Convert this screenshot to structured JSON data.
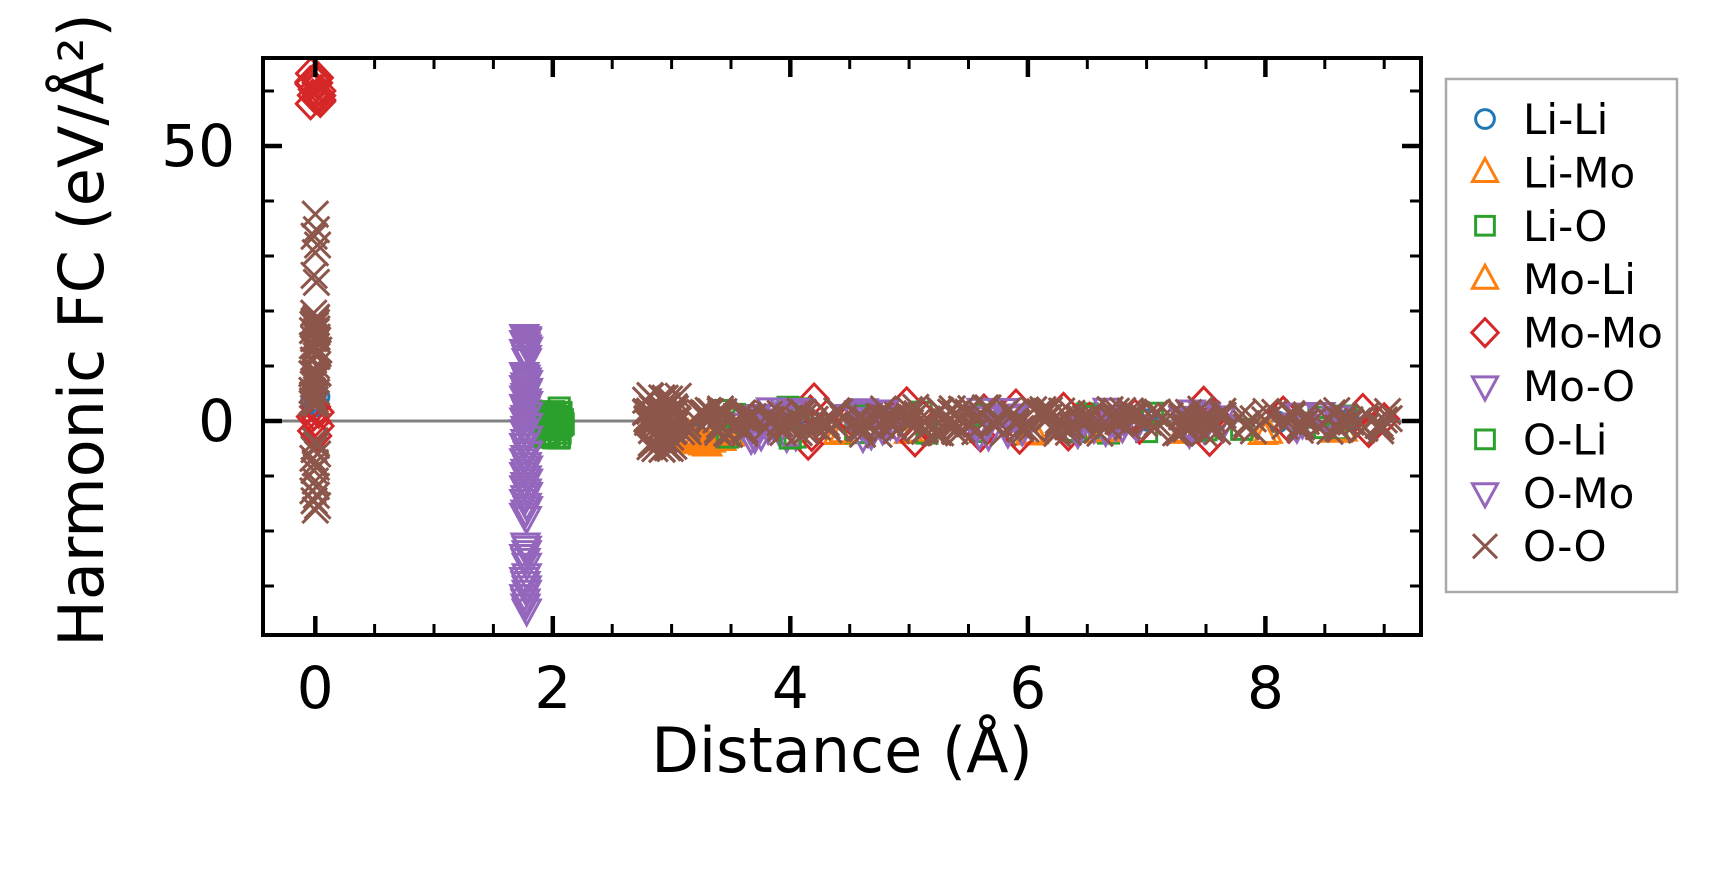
{
  "chart_data": {
    "type": "scatter",
    "title": "",
    "xlabel": "Distance (Å)",
    "ylabel": "Harmonic FC (eV/Å²)",
    "xlim": [
      -0.44,
      9.31
    ],
    "ylim": [
      -38.9,
      66.0
    ],
    "x_ticks": {
      "major": [
        0,
        2,
        4,
        6,
        8
      ],
      "minor_step": 0.5
    },
    "y_ticks": {
      "major": [
        0,
        50
      ],
      "minor_step": 10
    },
    "grid": false,
    "zero_line": {
      "y": 0,
      "color": "#808080"
    },
    "legend": {
      "position": "outside-right",
      "border_color": "#aaaaaa",
      "entries": [
        "Li-Li",
        "Li-Mo",
        "Li-O",
        "Mo-Li",
        "Mo-Mo",
        "Mo-O",
        "O-Li",
        "O-Mo",
        "O-O"
      ]
    },
    "series": [
      {
        "name": "Li-Li",
        "marker": "circle",
        "color": "#1f77b4",
        "points": [
          [
            0,
            5.2
          ],
          [
            0.03,
            4.4
          ],
          [
            -0.03,
            3.6
          ],
          [
            0.02,
            2.8
          ],
          [
            -0.02,
            4.8
          ],
          [
            0,
            3.1
          ],
          [
            3.0,
            0.5
          ],
          [
            3.3,
            -0.4
          ],
          [
            4.2,
            -0.3
          ],
          [
            4.8,
            0.4
          ],
          [
            5.7,
            0.6
          ],
          [
            6.4,
            -0.5
          ],
          [
            7.0,
            0.2
          ],
          [
            7.5,
            0.3
          ],
          [
            8.1,
            -0.2
          ],
          [
            8.7,
            0.1
          ]
        ],
        "clusters": []
      },
      {
        "name": "Li-Mo",
        "marker": "triangle-up",
        "color": "#ff7f0e",
        "points": [
          [
            3.1,
            -2.9
          ],
          [
            3.16,
            -3.5
          ],
          [
            3.23,
            -4.0
          ],
          [
            3.3,
            -4.4
          ],
          [
            3.38,
            -3.2
          ],
          [
            3.46,
            -2.8
          ],
          [
            3.14,
            -2.5
          ],
          [
            3.33,
            -3.7
          ],
          [
            4.4,
            -2.3
          ],
          [
            5.0,
            -2.1
          ],
          [
            6.02,
            -2.4
          ],
          [
            6.6,
            -2.0
          ],
          [
            7.3,
            -2.1
          ],
          [
            7.98,
            -2.3
          ],
          [
            8.6,
            -1.9
          ]
        ],
        "clusters": []
      },
      {
        "name": "Li-O",
        "marker": "square",
        "color": "#2ca02c",
        "points": [
          [
            3.44,
            1.9
          ],
          [
            3.5,
            -2.7
          ],
          [
            3.56,
            0.6
          ],
          [
            3.98,
            2.5
          ],
          [
            4.04,
            -2.9
          ],
          [
            4.1,
            0.4
          ],
          [
            4.55,
            -2.1
          ],
          [
            5.1,
            1.6
          ],
          [
            5.6,
            -1.9
          ],
          [
            6.35,
            -1.7
          ],
          [
            6.5,
            1.3
          ],
          [
            6.68,
            -2.2
          ],
          [
            7.0,
            -1.9
          ],
          [
            7.45,
            0.9
          ],
          [
            7.8,
            -1.5
          ],
          [
            8.45,
            0.7
          ],
          [
            8.6,
            -1.4
          ]
        ],
        "clusters": [
          [
            1.93,
            2.08,
            -3.2,
            2.2,
            22
          ]
        ]
      },
      {
        "name": "Mo-Li",
        "marker": "triangle-up",
        "color": "#ff7f0e",
        "points": [
          [
            3.12,
            -3.1
          ],
          [
            3.2,
            -3.8
          ],
          [
            3.27,
            -4.2
          ],
          [
            3.35,
            -2.9
          ],
          [
            3.42,
            -3.4
          ],
          [
            3.5,
            -2.6
          ],
          [
            4.45,
            -2.0
          ],
          [
            5.05,
            -1.9
          ],
          [
            6.05,
            -2.2
          ],
          [
            6.65,
            -1.8
          ],
          [
            7.35,
            -1.9
          ],
          [
            8.02,
            -2.1
          ],
          [
            8.65,
            -1.7
          ]
        ],
        "clusters": []
      },
      {
        "name": "Mo-Mo",
        "marker": "diamond",
        "color": "#d62728",
        "points": [
          [
            0,
            2.6
          ],
          [
            0.03,
            1.6
          ],
          [
            -0.03,
            0.8
          ],
          [
            0,
            0.0
          ],
          [
            0.03,
            -0.9
          ],
          [
            -0.02,
            -1.8
          ],
          [
            0.01,
            -2.7
          ],
          [
            -0.01,
            1.2
          ],
          [
            4.17,
            1.8
          ],
          [
            4.18,
            -2.6
          ],
          [
            4.2,
            4.0
          ],
          [
            4.15,
            -4.2
          ],
          [
            4.5,
            0.5
          ],
          [
            4.98,
            3.3
          ],
          [
            5.05,
            -3.6
          ],
          [
            5.12,
            0.8
          ],
          [
            5.18,
            -1.5
          ],
          [
            5.6,
            -2.7
          ],
          [
            5.63,
            2.0
          ],
          [
            5.9,
            2.9
          ],
          [
            5.93,
            -3.1
          ],
          [
            6.3,
            2.3
          ],
          [
            6.34,
            -2.5
          ],
          [
            6.52,
            0.5
          ],
          [
            6.9,
            1.1
          ],
          [
            6.94,
            -1.3
          ],
          [
            7.48,
            3.4
          ],
          [
            7.53,
            -3.5
          ],
          [
            7.57,
            1.0
          ],
          [
            8.15,
            1.6
          ],
          [
            8.2,
            -1.1
          ],
          [
            8.82,
            2.1
          ],
          [
            8.87,
            -1.9
          ],
          [
            9.0,
            0.4
          ]
        ],
        "clusters": [
          [
            -0.05,
            0.05,
            57.6,
            63.2,
            16
          ]
        ]
      },
      {
        "name": "Mo-O",
        "marker": "triangle-down",
        "color": "#9467bd",
        "points": [
          [
            1.76,
            15.6
          ],
          [
            1.78,
            14.9
          ],
          [
            1.77,
            14.1
          ],
          [
            1.79,
            13.3
          ],
          [
            1.77,
            12.4
          ],
          [
            1.78,
            11.2
          ],
          [
            1.76,
            8.7
          ],
          [
            1.78,
            7.7
          ],
          [
            1.77,
            6.8
          ],
          [
            1.79,
            5.8
          ],
          [
            1.77,
            4.9
          ],
          [
            1.78,
            3.9
          ],
          [
            1.76,
            2.9
          ],
          [
            1.78,
            1.9
          ],
          [
            1.77,
            0.9
          ],
          [
            1.78,
            -0.1
          ],
          [
            1.77,
            -1.1
          ],
          [
            1.78,
            -2.3
          ],
          [
            1.77,
            -3.5
          ],
          [
            1.78,
            -5.1
          ],
          [
            1.77,
            -6.4
          ],
          [
            1.78,
            -7.7
          ],
          [
            1.77,
            -8.9
          ],
          [
            1.78,
            -10.1
          ],
          [
            1.77,
            -11.3
          ],
          [
            1.78,
            -12.5
          ],
          [
            1.77,
            -13.7
          ],
          [
            1.78,
            -15.1
          ],
          [
            1.77,
            -16.3
          ],
          [
            1.78,
            -17.5
          ],
          [
            1.77,
            -22.3
          ],
          [
            1.78,
            -23.7
          ],
          [
            1.77,
            -25.1
          ],
          [
            1.78,
            -27.9
          ],
          [
            1.77,
            -29.3
          ],
          [
            1.78,
            -30.9
          ],
          [
            1.77,
            -32.5
          ],
          [
            1.78,
            -34.3
          ]
        ],
        "clusters": [
          [
            3.55,
            4.06,
            -3.6,
            2.8,
            14
          ],
          [
            4.5,
            4.96,
            -3.0,
            2.5,
            10
          ],
          [
            5.5,
            6.0,
            -2.6,
            2.2,
            8
          ],
          [
            6.6,
            6.95,
            -2.4,
            2.4,
            8
          ],
          [
            7.25,
            7.6,
            -2.2,
            2.0,
            6
          ],
          [
            8.15,
            8.35,
            -1.8,
            1.6,
            4
          ]
        ]
      },
      {
        "name": "O-Li",
        "marker": "square",
        "color": "#2ca02c",
        "points": [
          [
            3.47,
            -2.9
          ],
          [
            3.53,
            1.2
          ],
          [
            4.0,
            -3.1
          ],
          [
            4.07,
            2.2
          ],
          [
            4.6,
            1.0
          ],
          [
            5.15,
            -2.2
          ],
          [
            5.65,
            1.1
          ],
          [
            6.4,
            -1.9
          ],
          [
            6.55,
            0.8
          ],
          [
            7.05,
            1.4
          ],
          [
            7.5,
            -1.6
          ],
          [
            8.5,
            -1.2
          ],
          [
            8.68,
            0.9
          ]
        ],
        "clusters": [
          [
            1.94,
            2.09,
            -3.4,
            2.4,
            22
          ]
        ]
      },
      {
        "name": "O-Mo",
        "marker": "triangle-down",
        "color": "#9467bd",
        "points": [
          [
            1.78,
            15.2
          ],
          [
            1.76,
            14.5
          ],
          [
            1.78,
            13.7
          ],
          [
            1.76,
            12.9
          ],
          [
            1.78,
            11.8
          ],
          [
            1.77,
            8.2
          ],
          [
            1.79,
            7.2
          ],
          [
            1.76,
            6.3
          ],
          [
            1.78,
            5.3
          ],
          [
            1.76,
            4.4
          ],
          [
            1.79,
            3.4
          ],
          [
            1.77,
            2.4
          ],
          [
            1.79,
            1.4
          ],
          [
            1.76,
            0.4
          ],
          [
            1.79,
            -0.6
          ],
          [
            1.76,
            -1.7
          ],
          [
            1.79,
            -2.9
          ],
          [
            1.76,
            -4.2
          ],
          [
            1.79,
            -5.7
          ],
          [
            1.76,
            -7.0
          ],
          [
            1.79,
            -8.3
          ],
          [
            1.76,
            -9.5
          ],
          [
            1.79,
            -10.7
          ],
          [
            1.76,
            -11.9
          ],
          [
            1.79,
            -13.1
          ],
          [
            1.76,
            -14.4
          ],
          [
            1.79,
            -15.7
          ],
          [
            1.76,
            -16.9
          ],
          [
            1.78,
            -22.9
          ],
          [
            1.76,
            -24.4
          ],
          [
            1.78,
            -26.0
          ],
          [
            1.76,
            -28.6
          ],
          [
            1.78,
            -30.1
          ],
          [
            1.76,
            -31.7
          ],
          [
            1.77,
            -33.4
          ]
        ],
        "clusters": [
          [
            3.6,
            4.1,
            -3.4,
            2.9,
            12
          ],
          [
            4.55,
            5.0,
            -2.8,
            2.4,
            8
          ],
          [
            5.55,
            6.05,
            -2.4,
            2.0,
            6
          ],
          [
            6.38,
            6.9,
            -2.5,
            2.3,
            8
          ],
          [
            7.3,
            7.65,
            -2.0,
            2.1,
            6
          ],
          [
            8.3,
            8.6,
            -1.6,
            1.5,
            4
          ]
        ]
      },
      {
        "name": "O-O",
        "marker": "x",
        "color": "#8c564b",
        "points": [
          [
            0,
            37.6
          ],
          [
            0.01,
            34.8
          ],
          [
            -0.01,
            33.6
          ],
          [
            0.02,
            32.0
          ],
          [
            0,
            30.6
          ],
          [
            -0.01,
            26.5
          ],
          [
            0.01,
            25.2
          ],
          [
            0,
            -3.6
          ],
          [
            0.01,
            -4.4
          ],
          [
            -0.01,
            -5.2
          ],
          [
            0.02,
            -6.0
          ],
          [
            -0.02,
            -6.8
          ],
          [
            0,
            -7.6
          ],
          [
            0.01,
            -8.4
          ],
          [
            -0.01,
            -9.0
          ],
          [
            0,
            -10.9
          ],
          [
            0.01,
            -11.9
          ],
          [
            -0.02,
            -12.7
          ],
          [
            0.01,
            -13.5
          ],
          [
            -0.01,
            -14.5
          ],
          [
            0.02,
            -15.4
          ],
          [
            0,
            -16.2
          ],
          [
            9.0,
            0.2
          ],
          [
            8.95,
            -0.8
          ]
        ],
        "clusters": [
          [
            -0.03,
            0.03,
            2.6,
            20.3,
            42
          ],
          [
            2.78,
            3.06,
            -5.5,
            4.7,
            60
          ],
          [
            3.05,
            3.62,
            -2.4,
            2.3,
            34
          ],
          [
            3.62,
            4.12,
            -2.1,
            2.0,
            20
          ],
          [
            4.12,
            4.62,
            -2.5,
            2.4,
            24
          ],
          [
            4.62,
            5.35,
            -2.6,
            2.6,
            32
          ],
          [
            5.35,
            6.12,
            -2.5,
            2.4,
            32
          ],
          [
            6.12,
            6.72,
            -2.4,
            2.3,
            28
          ],
          [
            6.72,
            7.12,
            -2.1,
            2.0,
            18
          ],
          [
            7.12,
            7.72,
            -2.3,
            2.2,
            24
          ],
          [
            7.72,
            8.42,
            -2.0,
            1.9,
            20
          ],
          [
            8.42,
            9.05,
            -2.2,
            1.9,
            22
          ]
        ]
      }
    ]
  }
}
